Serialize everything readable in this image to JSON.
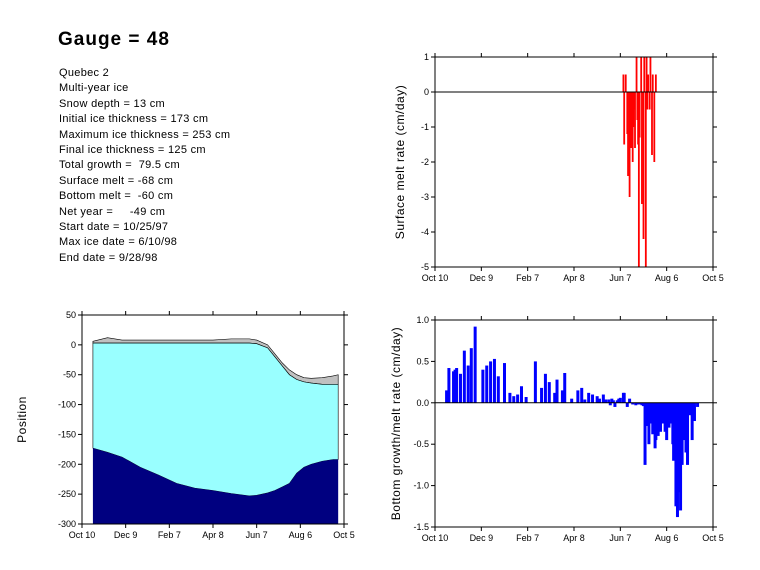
{
  "title": "Gauge = 48",
  "info_lines": [
    "Quebec 2",
    "Multi-year ice",
    "Snow depth = 13 cm",
    "Initial ice thickness = 173 cm",
    "Maximum ice thickness = 253 cm",
    "Final ice thickness = 125 cm",
    "Total growth =  79.5 cm",
    "Surface melt = -68 cm",
    "Bottom melt =  -60 cm",
    "Net year =     -49 cm",
    "Start date = 10/25/97",
    "Max ice date = 6/10/98",
    "End date = 9/28/98"
  ],
  "colors": {
    "surface_bars": "#ff0000",
    "bottom_bars": "#0000ff",
    "snow": "#c0c0c0",
    "ice": "#99ffff",
    "ocean": "#000080"
  },
  "chart_data": [
    {
      "id": "position",
      "type": "area",
      "title": "",
      "xlabel": "",
      "ylabel": "Position",
      "x_tick_labels": [
        "Oct 10",
        "Dec 9",
        "Feb 7",
        "Apr 8",
        "Jun 7",
        "Aug 6",
        "Oct 5"
      ],
      "x_tick_days": [
        0,
        60,
        120,
        180,
        240,
        300,
        360
      ],
      "xlim": [
        0,
        360
      ],
      "ylim": [
        -300,
        50
      ],
      "y_ticks": [
        50,
        0,
        -50,
        -100,
        -150,
        -200,
        -250,
        -300
      ],
      "x": [
        15,
        35,
        55,
        80,
        105,
        130,
        155,
        180,
        205,
        230,
        240,
        255,
        265,
        275,
        285,
        295,
        305,
        315,
        330,
        345,
        352
      ],
      "series": [
        {
          "values": [
            6,
            12,
            8,
            8,
            8,
            8,
            8,
            8,
            10,
            10,
            8,
            0,
            -15,
            -30,
            -42,
            -50,
            -55,
            -56,
            -55,
            -52,
            -50
          ]
        },
        {
          "values": [
            3,
            3,
            3,
            3,
            3,
            3,
            3,
            3,
            3,
            3,
            2,
            -5,
            -20,
            -35,
            -50,
            -58,
            -62,
            -64,
            -66,
            -66,
            -66
          ]
        },
        {
          "values": [
            -173,
            -180,
            -188,
            -205,
            -218,
            -232,
            -240,
            -244,
            -249,
            -253,
            -252,
            -248,
            -244,
            -238,
            -232,
            -215,
            -205,
            -200,
            -195,
            -192,
            -192
          ]
        }
      ]
    },
    {
      "id": "surface-melt",
      "type": "bar",
      "title": "",
      "xlabel": "",
      "ylabel": "Surface melt rate (cm/day)",
      "x_tick_labels": [
        "Oct 10",
        "Dec 9",
        "Feb 7",
        "Apr 8",
        "Jun 7",
        "Aug 6",
        "Oct 5"
      ],
      "x_tick_days": [
        0,
        60,
        120,
        180,
        240,
        300,
        360
      ],
      "xlim": [
        0,
        360
      ],
      "ylim": [
        -5,
        1
      ],
      "y_ticks": [
        1,
        0,
        -1,
        -2,
        -3,
        -4,
        -5
      ],
      "x": [
        244,
        245,
        247,
        249,
        250,
        252,
        253,
        254,
        256,
        257,
        258,
        259,
        261,
        262,
        263,
        264,
        265,
        267,
        268,
        270,
        271,
        273,
        274,
        275,
        276,
        278,
        279,
        281,
        282,
        284,
        286
      ],
      "values": [
        0.5,
        -1.5,
        0.5,
        -1.2,
        -2.4,
        -3.0,
        -0.8,
        -1.6,
        -2.0,
        -1.0,
        -0.5,
        -1.6,
        1.0,
        -0.8,
        -1.5,
        -5.0,
        -1.3,
        1.0,
        -3.2,
        -4.2,
        1.0,
        -5.0,
        1.0,
        -0.5,
        0.5,
        -0.5,
        1.0,
        -1.8,
        0.5,
        -2.0,
        0.5
      ]
    },
    {
      "id": "bottom-growth",
      "type": "bar",
      "title": "",
      "xlabel": "",
      "ylabel": "Bottom growth/melt rate (cm/day)",
      "x_tick_labels": [
        "Oct 10",
        "Dec 9",
        "Feb 7",
        "Apr 8",
        "Jun 7",
        "Aug 6",
        "Oct 5"
      ],
      "x_tick_days": [
        0,
        60,
        120,
        180,
        240,
        300,
        360
      ],
      "xlim": [
        0,
        360
      ],
      "ylim": [
        -1.5,
        1
      ],
      "y_ticks": [
        1.0,
        0.5,
        0.0,
        -0.5,
        -1.0,
        -1.5
      ],
      "x": [
        15,
        18,
        24,
        26,
        28,
        33,
        38,
        43,
        47,
        52,
        62,
        67,
        72,
        77,
        82,
        90,
        97,
        102,
        107,
        112,
        118,
        130,
        138,
        143,
        148,
        155,
        158,
        165,
        168,
        177,
        185,
        190,
        194,
        199,
        204,
        210,
        213,
        218,
        221,
        225,
        227,
        229,
        231,
        233,
        236,
        238,
        240,
        244,
        245,
        249,
        252,
        256,
        258,
        260,
        263,
        265,
        268,
        270,
        272,
        275,
        277,
        279,
        282,
        285,
        286,
        289,
        292,
        295,
        298,
        300,
        303,
        305,
        308,
        309,
        312,
        314,
        315,
        318,
        320,
        323,
        325,
        327,
        330,
        333,
        336,
        340
      ],
      "values": [
        0.15,
        0.42,
        0.38,
        0.4,
        0.42,
        0.35,
        0.63,
        0.45,
        0.66,
        0.92,
        0.4,
        0.45,
        0.5,
        0.53,
        0.32,
        0.48,
        0.12,
        0.08,
        0.1,
        0.2,
        0.07,
        0.5,
        0.18,
        0.35,
        0.25,
        0.12,
        0.28,
        0.15,
        0.36,
        0.05,
        0.15,
        0.18,
        0.04,
        0.12,
        0.1,
        0.08,
        0.05,
        0.1,
        0.04,
        0.04,
        -0.03,
        0.05,
        0.03,
        -0.05,
        0.03,
        0.05,
        0.06,
        0.12,
        0.12,
        -0.05,
        0.05,
        -0.02,
        -0.01,
        -0.03,
        -0.02,
        -0.02,
        -0.03,
        -0.04,
        -0.75,
        -0.28,
        -0.5,
        -0.25,
        -0.38,
        -0.55,
        -0.45,
        -0.4,
        -0.35,
        -0.25,
        -0.35,
        -0.45,
        -0.3,
        -0.25,
        -0.5,
        -0.7,
        -1.25,
        -1.38,
        -1.08,
        -1.3,
        -0.75,
        -0.45,
        -0.6,
        -0.75,
        -0.15,
        -0.45,
        -0.22,
        -0.05
      ]
    }
  ]
}
